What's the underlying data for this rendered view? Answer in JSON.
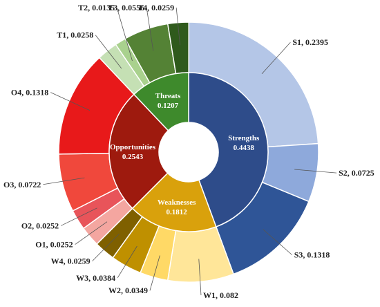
{
  "chart_data": {
    "type": "pie",
    "variant": "sunburst",
    "inner_ring": [
      {
        "name": "Strengths",
        "value": 0.4438,
        "color": "#2E4C8A"
      },
      {
        "name": "Weaknesses",
        "value": 0.1812,
        "color": "#D9A10C"
      },
      {
        "name": "Opportunities",
        "value": 0.2543,
        "color": "#9E1A0E"
      },
      {
        "name": "Threats",
        "value": 0.1207,
        "color": "#3E8A2C"
      }
    ],
    "outer_ring": [
      {
        "name": "S1",
        "value": 0.2395,
        "parent": "Strengths",
        "color": "#B4C6E7"
      },
      {
        "name": "S2",
        "value": 0.0725,
        "parent": "Strengths",
        "color": "#8EA9DB"
      },
      {
        "name": "S3",
        "value": 0.1318,
        "parent": "Strengths",
        "color": "#2F5597"
      },
      {
        "name": "W1",
        "value": 0.082,
        "parent": "Weaknesses",
        "color": "#FFE699"
      },
      {
        "name": "W2",
        "value": 0.0349,
        "parent": "Weaknesses",
        "color": "#FFD966"
      },
      {
        "name": "W3",
        "value": 0.0384,
        "parent": "Weaknesses",
        "color": "#BF9000"
      },
      {
        "name": "W4",
        "value": 0.0259,
        "parent": "Weaknesses",
        "color": "#7F6000"
      },
      {
        "name": "O1",
        "value": 0.0252,
        "parent": "Opportunities",
        "color": "#F4A6A0"
      },
      {
        "name": "O2",
        "value": 0.0252,
        "parent": "Opportunities",
        "color": "#E8545A"
      },
      {
        "name": "O3",
        "value": 0.0722,
        "parent": "Opportunities",
        "color": "#F0483C"
      },
      {
        "name": "O4",
        "value": 0.1318,
        "parent": "Opportunities",
        "color": "#E8191A"
      },
      {
        "name": "T1",
        "value": 0.0258,
        "parent": "Threats",
        "color": "#C5E0B4"
      },
      {
        "name": "T2",
        "value": 0.0135,
        "parent": "Threats",
        "color": "#A9D18E"
      },
      {
        "name": "T3",
        "value": 0.0556,
        "parent": "Threats",
        "color": "#548235"
      },
      {
        "name": "T4",
        "value": 0.0259,
        "parent": "Threats",
        "color": "#2F5A1C"
      }
    ]
  }
}
